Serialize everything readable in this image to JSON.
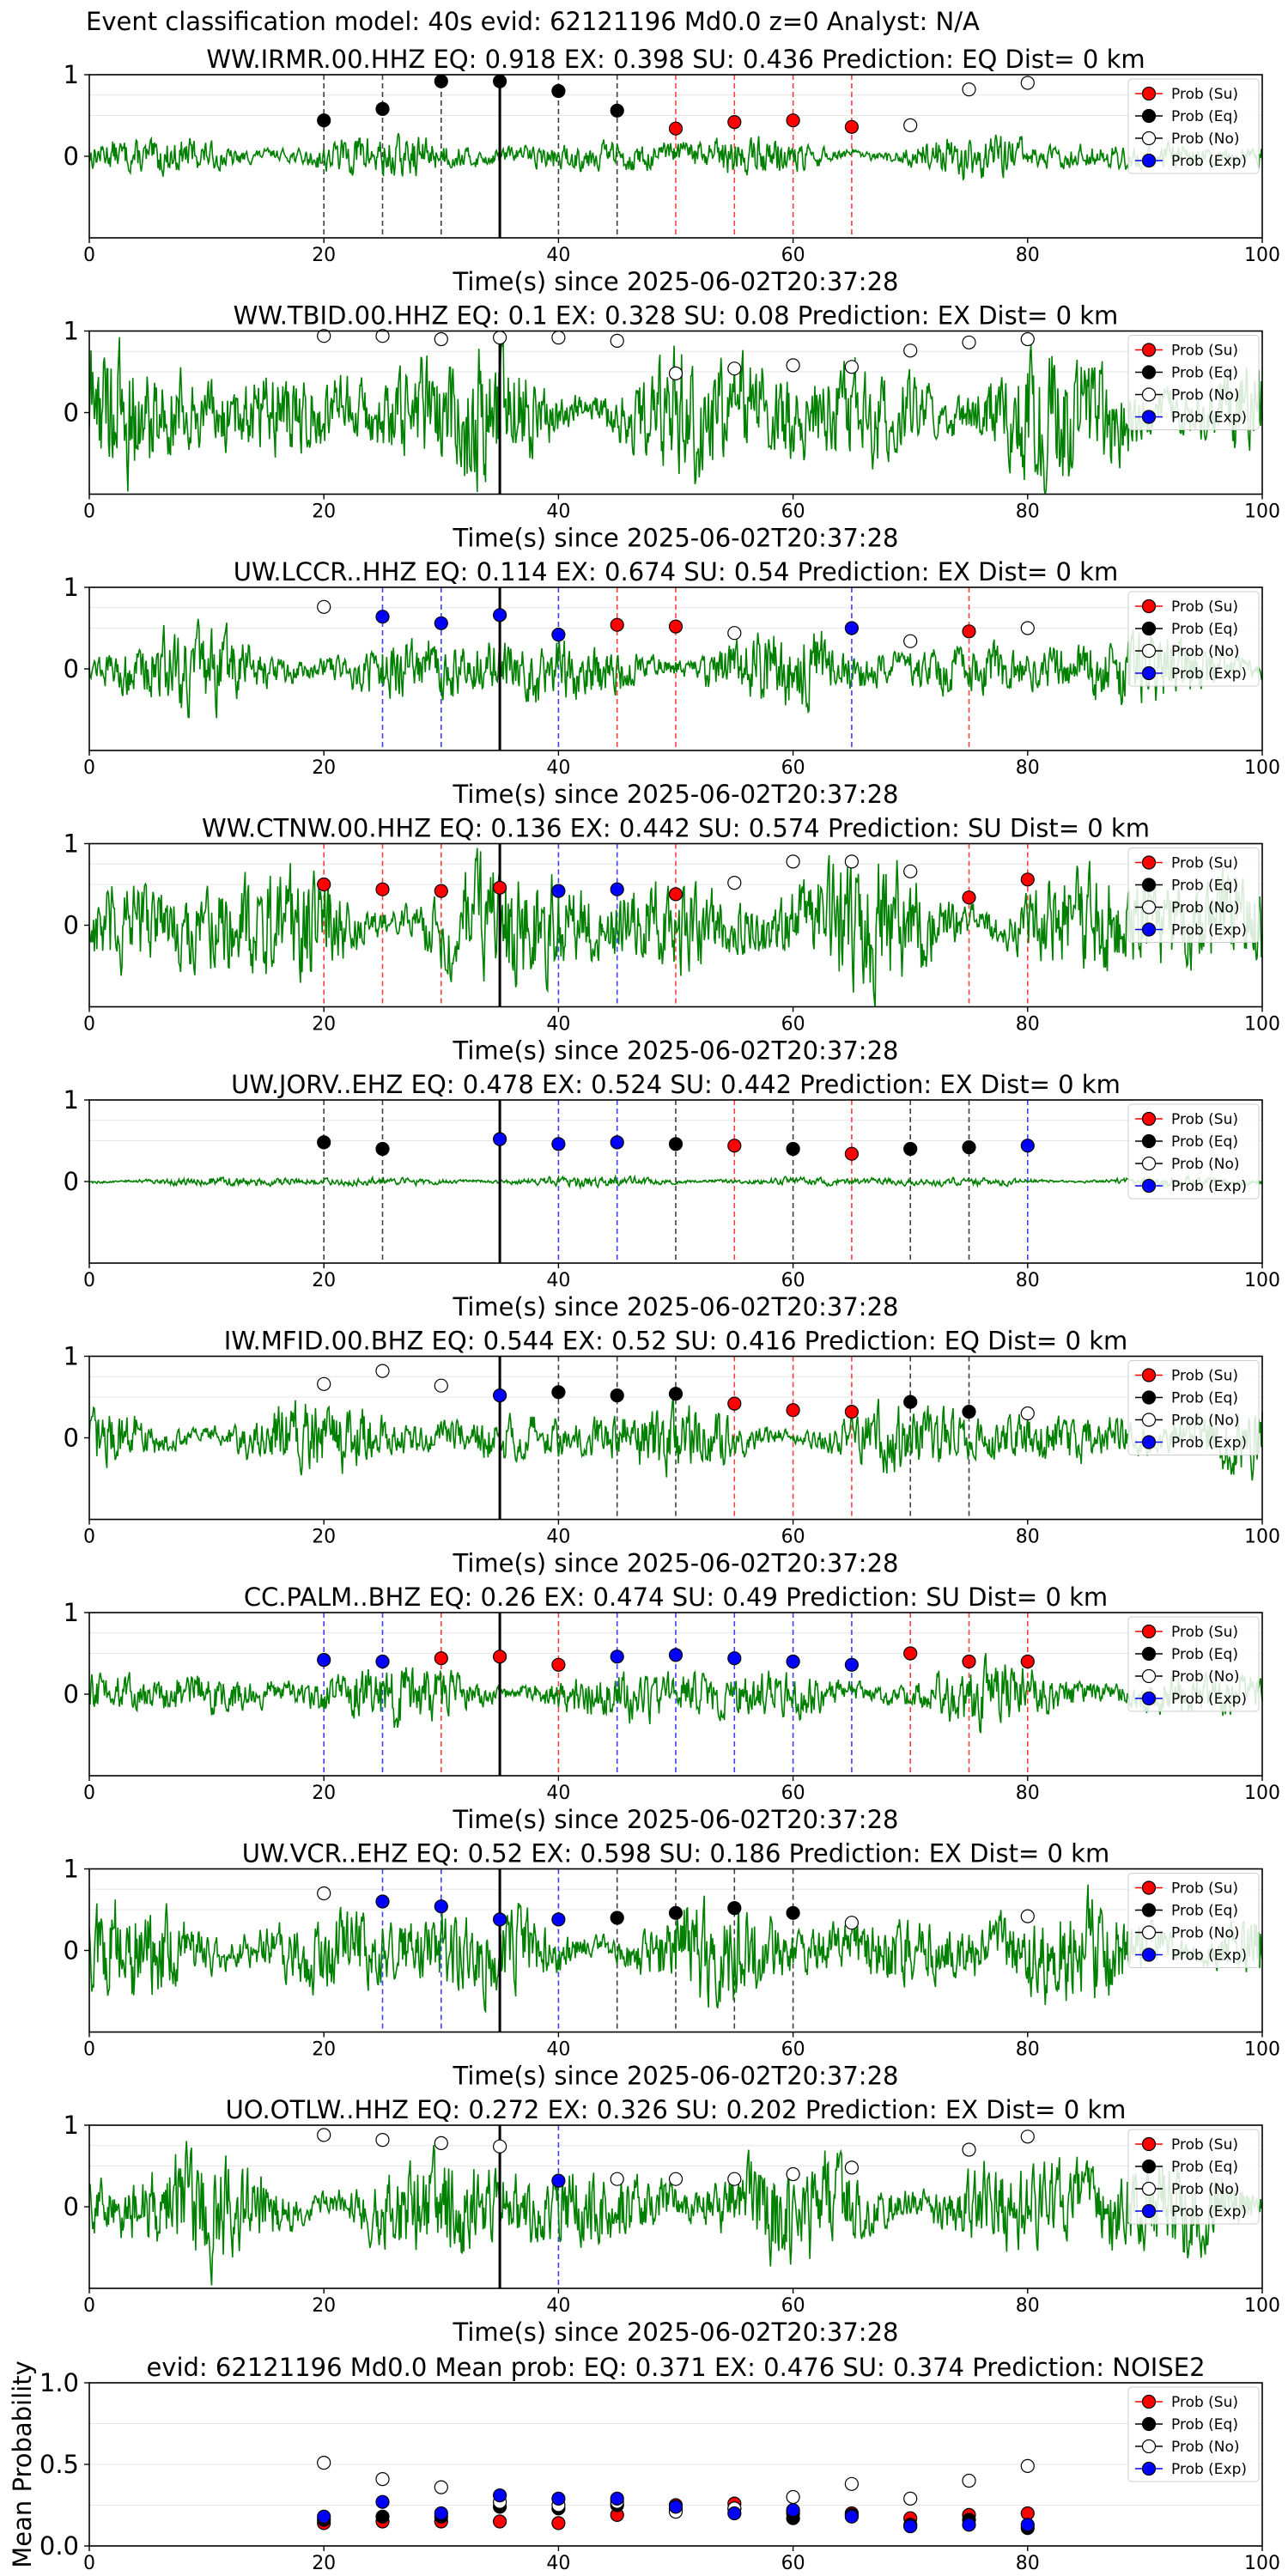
{
  "figure_title": "Event classification model: 40s evid: 62121196 Md0.0 z=0 Analyst: N/A",
  "legend_labels": [
    "Prob (Su)",
    "Prob (Eq)",
    "Prob (No)",
    "Prob (Exp)"
  ],
  "colors": {
    "su": "#ff0000",
    "eq": "#000000",
    "no": "#ffffff",
    "exp": "#0000ff",
    "waveform": "#008000",
    "reference_line": "#000000"
  },
  "chart_data": [
    {
      "type": "line",
      "title": "WW.IRMR.00.HHZ   EQ: 0.918  EX: 0.398  SU: 0.436   Prediction: EQ    Dist= 0 km",
      "xlabel": "Time(s) since 2025-06-02T20:37:28",
      "ylabel": "",
      "xlim": [
        0,
        100
      ],
      "ylim": [
        -1,
        1
      ],
      "xticks": [
        0,
        20,
        40,
        60,
        80,
        100
      ],
      "yticks": [
        0,
        1
      ],
      "waveform_amplitude": 0.25,
      "reference_time": 35,
      "points": [
        {
          "t": 20,
          "cls": "eq",
          "p": 0.44
        },
        {
          "t": 25,
          "cls": "eq",
          "p": 0.58
        },
        {
          "t": 30,
          "cls": "eq",
          "p": 0.92
        },
        {
          "t": 35,
          "cls": "eq",
          "p": 0.92
        },
        {
          "t": 40,
          "cls": "eq",
          "p": 0.8
        },
        {
          "t": 45,
          "cls": "eq",
          "p": 0.56
        },
        {
          "t": 50,
          "cls": "su",
          "p": 0.34
        },
        {
          "t": 55,
          "cls": "su",
          "p": 0.42
        },
        {
          "t": 60,
          "cls": "su",
          "p": 0.44
        },
        {
          "t": 65,
          "cls": "su",
          "p": 0.36
        },
        {
          "t": 70,
          "cls": "no",
          "p": 0.38
        },
        {
          "t": 75,
          "cls": "no",
          "p": 0.82
        },
        {
          "t": 80,
          "cls": "no",
          "p": 0.9
        }
      ]
    },
    {
      "type": "line",
      "title": "WW.TBID.00.HHZ   EQ: 0.1  EX: 0.328  SU: 0.08   Prediction: EX    Dist= 0 km",
      "xlabel": "Time(s) since 2025-06-02T20:37:28",
      "ylabel": "",
      "xlim": [
        0,
        100
      ],
      "ylim": [
        -1,
        1
      ],
      "xticks": [
        0,
        20,
        40,
        60,
        80,
        100
      ],
      "yticks": [
        0,
        1
      ],
      "waveform_amplitude": 0.8,
      "reference_time": 35,
      "points": [
        {
          "t": 20,
          "cls": "no",
          "p": 0.94
        },
        {
          "t": 25,
          "cls": "no",
          "p": 0.94
        },
        {
          "t": 30,
          "cls": "no",
          "p": 0.9
        },
        {
          "t": 35,
          "cls": "no",
          "p": 0.92
        },
        {
          "t": 40,
          "cls": "no",
          "p": 0.92
        },
        {
          "t": 45,
          "cls": "no",
          "p": 0.88
        },
        {
          "t": 50,
          "cls": "no",
          "p": 0.48
        },
        {
          "t": 55,
          "cls": "no",
          "p": 0.54
        },
        {
          "t": 60,
          "cls": "no",
          "p": 0.58
        },
        {
          "t": 65,
          "cls": "no",
          "p": 0.56
        },
        {
          "t": 70,
          "cls": "no",
          "p": 0.76
        },
        {
          "t": 75,
          "cls": "no",
          "p": 0.86
        },
        {
          "t": 80,
          "cls": "no",
          "p": 0.9
        }
      ]
    },
    {
      "type": "line",
      "title": "UW.LCCR..HHZ   EQ: 0.114  EX: 0.674  SU: 0.54   Prediction: EX    Dist= 0 km",
      "xlabel": "Time(s) since 2025-06-02T20:37:28",
      "ylabel": "",
      "xlim": [
        0,
        100
      ],
      "ylim": [
        -1,
        1
      ],
      "xticks": [
        0,
        20,
        40,
        60,
        80,
        100
      ],
      "yticks": [
        0,
        1
      ],
      "waveform_amplitude": 0.45,
      "reference_time": 35,
      "points": [
        {
          "t": 20,
          "cls": "no",
          "p": 0.76
        },
        {
          "t": 25,
          "cls": "exp",
          "p": 0.64
        },
        {
          "t": 30,
          "cls": "exp",
          "p": 0.56
        },
        {
          "t": 35,
          "cls": "exp",
          "p": 0.66
        },
        {
          "t": 40,
          "cls": "exp",
          "p": 0.42
        },
        {
          "t": 45,
          "cls": "su",
          "p": 0.54
        },
        {
          "t": 50,
          "cls": "su",
          "p": 0.52
        },
        {
          "t": 55,
          "cls": "no",
          "p": 0.44
        },
        {
          "t": 65,
          "cls": "exp",
          "p": 0.5
        },
        {
          "t": 70,
          "cls": "no",
          "p": 0.34
        },
        {
          "t": 75,
          "cls": "su",
          "p": 0.46
        },
        {
          "t": 80,
          "cls": "no",
          "p": 0.5
        }
      ]
    },
    {
      "type": "line",
      "title": "WW.CTNW.00.HHZ   EQ: 0.136  EX: 0.442  SU: 0.574   Prediction: SU    Dist= 0 km",
      "xlabel": "Time(s) since 2025-06-02T20:37:28",
      "ylabel": "",
      "xlim": [
        0,
        100
      ],
      "ylim": [
        -1,
        1
      ],
      "xticks": [
        0,
        20,
        40,
        60,
        80,
        100
      ],
      "yticks": [
        0,
        1
      ],
      "waveform_amplitude": 0.75,
      "reference_time": 35,
      "points": [
        {
          "t": 20,
          "cls": "su",
          "p": 0.5
        },
        {
          "t": 25,
          "cls": "su",
          "p": 0.44
        },
        {
          "t": 30,
          "cls": "su",
          "p": 0.42
        },
        {
          "t": 35,
          "cls": "su",
          "p": 0.46
        },
        {
          "t": 40,
          "cls": "exp",
          "p": 0.42
        },
        {
          "t": 45,
          "cls": "exp",
          "p": 0.44
        },
        {
          "t": 50,
          "cls": "su",
          "p": 0.38
        },
        {
          "t": 55,
          "cls": "no",
          "p": 0.52
        },
        {
          "t": 60,
          "cls": "no",
          "p": 0.78
        },
        {
          "t": 65,
          "cls": "no",
          "p": 0.78
        },
        {
          "t": 70,
          "cls": "no",
          "p": 0.66
        },
        {
          "t": 75,
          "cls": "su",
          "p": 0.34
        },
        {
          "t": 80,
          "cls": "su",
          "p": 0.56
        }
      ]
    },
    {
      "type": "line",
      "title": "UW.JORV..EHZ   EQ: 0.478  EX: 0.524  SU: 0.442   Prediction: EX    Dist= 0 km",
      "xlabel": "Time(s) since 2025-06-02T20:37:28",
      "ylabel": "",
      "xlim": [
        0,
        100
      ],
      "ylim": [
        -1,
        1
      ],
      "xticks": [
        0,
        20,
        40,
        60,
        80,
        100
      ],
      "yticks": [
        0,
        1
      ],
      "waveform_amplitude": 0.06,
      "reference_time": 35,
      "points": [
        {
          "t": 20,
          "cls": "eq",
          "p": 0.48
        },
        {
          "t": 25,
          "cls": "eq",
          "p": 0.4
        },
        {
          "t": 35,
          "cls": "exp",
          "p": 0.52
        },
        {
          "t": 40,
          "cls": "exp",
          "p": 0.46
        },
        {
          "t": 45,
          "cls": "exp",
          "p": 0.48
        },
        {
          "t": 50,
          "cls": "eq",
          "p": 0.46
        },
        {
          "t": 55,
          "cls": "su",
          "p": 0.44
        },
        {
          "t": 60,
          "cls": "eq",
          "p": 0.4
        },
        {
          "t": 65,
          "cls": "su",
          "p": 0.34
        },
        {
          "t": 70,
          "cls": "eq",
          "p": 0.4
        },
        {
          "t": 75,
          "cls": "eq",
          "p": 0.42
        },
        {
          "t": 80,
          "cls": "exp",
          "p": 0.44
        }
      ]
    },
    {
      "type": "line",
      "title": "IW.MFID.00.BHZ   EQ: 0.544  EX: 0.52  SU: 0.416   Prediction: EQ    Dist= 0 km",
      "xlabel": "Time(s) since 2025-06-02T20:37:28",
      "ylabel": "",
      "xlim": [
        0,
        100
      ],
      "ylim": [
        -1,
        1
      ],
      "xticks": [
        0,
        20,
        40,
        60,
        80,
        100
      ],
      "yticks": [
        0,
        1
      ],
      "waveform_amplitude": 0.4,
      "reference_time": 35,
      "points": [
        {
          "t": 20,
          "cls": "no",
          "p": 0.66
        },
        {
          "t": 25,
          "cls": "no",
          "p": 0.82
        },
        {
          "t": 30,
          "cls": "no",
          "p": 0.64
        },
        {
          "t": 35,
          "cls": "exp",
          "p": 0.52
        },
        {
          "t": 40,
          "cls": "eq",
          "p": 0.56
        },
        {
          "t": 45,
          "cls": "eq",
          "p": 0.52
        },
        {
          "t": 50,
          "cls": "eq",
          "p": 0.54
        },
        {
          "t": 55,
          "cls": "su",
          "p": 0.42
        },
        {
          "t": 60,
          "cls": "su",
          "p": 0.34
        },
        {
          "t": 65,
          "cls": "su",
          "p": 0.32
        },
        {
          "t": 70,
          "cls": "eq",
          "p": 0.44
        },
        {
          "t": 75,
          "cls": "eq",
          "p": 0.32
        },
        {
          "t": 80,
          "cls": "no",
          "p": 0.3
        }
      ]
    },
    {
      "type": "line",
      "title": "CC.PALM..BHZ   EQ: 0.26  EX: 0.474  SU: 0.49   Prediction: SU    Dist= 0 km",
      "xlabel": "Time(s) since 2025-06-02T20:37:28",
      "ylabel": "",
      "xlim": [
        0,
        100
      ],
      "ylim": [
        -1,
        1
      ],
      "xticks": [
        0,
        20,
        40,
        60,
        80,
        100
      ],
      "yticks": [
        0,
        1
      ],
      "waveform_amplitude": 0.35,
      "reference_time": 35,
      "points": [
        {
          "t": 20,
          "cls": "exp",
          "p": 0.42
        },
        {
          "t": 25,
          "cls": "exp",
          "p": 0.4
        },
        {
          "t": 30,
          "cls": "su",
          "p": 0.44
        },
        {
          "t": 35,
          "cls": "su",
          "p": 0.46
        },
        {
          "t": 40,
          "cls": "su",
          "p": 0.36
        },
        {
          "t": 45,
          "cls": "exp",
          "p": 0.46
        },
        {
          "t": 50,
          "cls": "exp",
          "p": 0.48
        },
        {
          "t": 55,
          "cls": "exp",
          "p": 0.44
        },
        {
          "t": 60,
          "cls": "exp",
          "p": 0.4
        },
        {
          "t": 65,
          "cls": "exp",
          "p": 0.36
        },
        {
          "t": 70,
          "cls": "su",
          "p": 0.5
        },
        {
          "t": 75,
          "cls": "su",
          "p": 0.4
        },
        {
          "t": 80,
          "cls": "su",
          "p": 0.4
        }
      ]
    },
    {
      "type": "line",
      "title": "UW.VCR..EHZ   EQ: 0.52  EX: 0.598  SU: 0.186   Prediction: EX    Dist= 0 km",
      "xlabel": "Time(s) since 2025-06-02T20:37:28",
      "ylabel": "",
      "xlim": [
        0,
        100
      ],
      "ylim": [
        -1,
        1
      ],
      "xticks": [
        0,
        20,
        40,
        60,
        80,
        100
      ],
      "yticks": [
        0,
        1
      ],
      "waveform_amplitude": 0.6,
      "reference_time": 35,
      "points": [
        {
          "t": 20,
          "cls": "no",
          "p": 0.7
        },
        {
          "t": 25,
          "cls": "exp",
          "p": 0.6
        },
        {
          "t": 30,
          "cls": "exp",
          "p": 0.54
        },
        {
          "t": 35,
          "cls": "exp",
          "p": 0.38
        },
        {
          "t": 40,
          "cls": "exp",
          "p": 0.38
        },
        {
          "t": 45,
          "cls": "eq",
          "p": 0.4
        },
        {
          "t": 50,
          "cls": "eq",
          "p": 0.46
        },
        {
          "t": 55,
          "cls": "eq",
          "p": 0.52
        },
        {
          "t": 60,
          "cls": "eq",
          "p": 0.46
        },
        {
          "t": 65,
          "cls": "no",
          "p": 0.34
        },
        {
          "t": 80,
          "cls": "no",
          "p": 0.42
        }
      ]
    },
    {
      "type": "line",
      "title": "UO.OTLW..HHZ   EQ: 0.272  EX: 0.326  SU: 0.202   Prediction: EX    Dist= 0 km",
      "xlabel": "Time(s) since 2025-06-02T20:37:28",
      "ylabel": "",
      "xlim": [
        0,
        100
      ],
      "ylim": [
        -1,
        1
      ],
      "xticks": [
        0,
        20,
        40,
        60,
        80,
        100
      ],
      "yticks": [
        0,
        1
      ],
      "waveform_amplitude": 0.65,
      "reference_time": 35,
      "points": [
        {
          "t": 20,
          "cls": "no",
          "p": 0.88
        },
        {
          "t": 25,
          "cls": "no",
          "p": 0.82
        },
        {
          "t": 30,
          "cls": "no",
          "p": 0.78
        },
        {
          "t": 35,
          "cls": "no",
          "p": 0.74
        },
        {
          "t": 40,
          "cls": "exp",
          "p": 0.32
        },
        {
          "t": 45,
          "cls": "no",
          "p": 0.34
        },
        {
          "t": 50,
          "cls": "no",
          "p": 0.34
        },
        {
          "t": 55,
          "cls": "no",
          "p": 0.34
        },
        {
          "t": 60,
          "cls": "no",
          "p": 0.4
        },
        {
          "t": 65,
          "cls": "no",
          "p": 0.48
        },
        {
          "t": 75,
          "cls": "no",
          "p": 0.7
        },
        {
          "t": 80,
          "cls": "no",
          "p": 0.86
        }
      ]
    },
    {
      "type": "scatter",
      "title": "evid: 62121196  Md0.0   Mean prob:    EQ: 0.371  EX: 0.476  SU: 0.374   Prediction: NOISE2",
      "xlabel": "",
      "ylabel": "Mean Probability",
      "xlim": [
        0,
        100
      ],
      "ylim": [
        0,
        1
      ],
      "xticks": [
        0,
        20,
        40,
        60,
        80,
        100
      ],
      "yticks": [
        0.0,
        0.5,
        1.0
      ],
      "x": [
        20,
        25,
        30,
        35,
        40,
        45,
        50,
        55,
        60,
        65,
        70,
        75,
        80
      ],
      "series": [
        {
          "name": "Prob (Su)",
          "cls": "su",
          "values": [
            0.14,
            0.15,
            0.15,
            0.15,
            0.14,
            0.19,
            0.25,
            0.26,
            0.2,
            0.2,
            0.17,
            0.19,
            0.2
          ]
        },
        {
          "name": "Prob (Eq)",
          "cls": "eq",
          "values": [
            0.16,
            0.18,
            0.18,
            0.24,
            0.23,
            0.25,
            0.23,
            0.23,
            0.17,
            0.19,
            0.13,
            0.16,
            0.11
          ]
        },
        {
          "name": "Prob (No)",
          "cls": "no",
          "values": [
            0.51,
            0.41,
            0.36,
            0.27,
            0.25,
            0.27,
            0.21,
            0.23,
            0.3,
            0.38,
            0.29,
            0.4,
            0.49
          ]
        },
        {
          "name": "Prob (Exp)",
          "cls": "exp",
          "values": [
            0.18,
            0.27,
            0.2,
            0.31,
            0.29,
            0.29,
            0.24,
            0.2,
            0.22,
            0.18,
            0.12,
            0.13,
            0.13
          ]
        }
      ]
    }
  ]
}
